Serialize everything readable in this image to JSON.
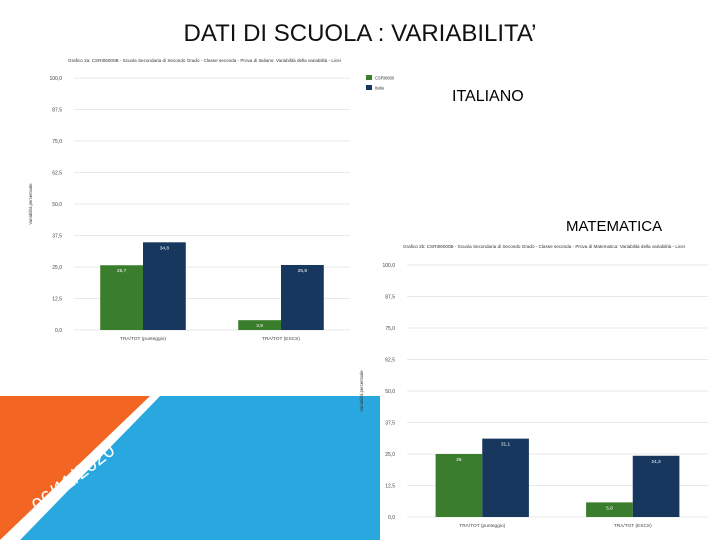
{
  "page": {
    "title": "DATI DI SCUOLA : VARIABILITA’",
    "label_italiano": "ITALIANO",
    "label_matematica": "MATEMATICA",
    "date": "06/11/2020"
  },
  "colors": {
    "series_school": "#3a7d2c",
    "series_italia": "#17375e",
    "deco_orange": "#f26522",
    "deco_blue": "#29a8e0"
  },
  "chart_data": [
    {
      "type": "bar",
      "title": "Grafico 2a: CSRI06000B - Scuola Secondaria di Secondo Grado - Classe seconda - Prova di Italiano: Variabilità della variabilità - Licei",
      "ylabel": "Variabilità percentuale",
      "categories": [
        "TRA/TOT (punteggio)",
        "TRA/TOT (ESCS)"
      ],
      "series": [
        {
          "name": "CSRI06000B",
          "values": [
            25.7,
            3.9
          ]
        },
        {
          "name": "Italia",
          "values": [
            34.8,
            25.8
          ]
        }
      ],
      "data_labels": [
        [
          "25,7",
          "3,9"
        ],
        [
          "34,8",
          "25,8"
        ]
      ],
      "ylim": [
        0,
        100
      ],
      "yticks": [
        "0,0",
        "12,5",
        "25,0",
        "37,5",
        "50,0",
        "62,5",
        "75,0",
        "87,5",
        "100,0"
      ],
      "legend": "top-right"
    },
    {
      "type": "bar",
      "title": "Grafico 2b: CSRI06000B - Scuola Secondaria di Secondo Grado - Classe seconda - Prova di Matematica: Variabilità della variabilità - Licei",
      "ylabel": "Variabilità percentuale",
      "categories": [
        "TRA/TOT (punteggio)",
        "TRA/TOT (ESCS)"
      ],
      "series": [
        {
          "name": "CSRI06000B",
          "values": [
            25.0,
            5.8
          ]
        },
        {
          "name": "Italia",
          "values": [
            31.1,
            24.3
          ]
        }
      ],
      "data_labels": [
        [
          "25",
          "5,8"
        ],
        [
          "31,1",
          "24,3"
        ]
      ],
      "ylim": [
        0,
        100
      ],
      "yticks": [
        "0,0",
        "12,5",
        "25,0",
        "37,5",
        "50,0",
        "62,5",
        "75,0",
        "87,5",
        "100,0"
      ],
      "legend": "none"
    }
  ]
}
